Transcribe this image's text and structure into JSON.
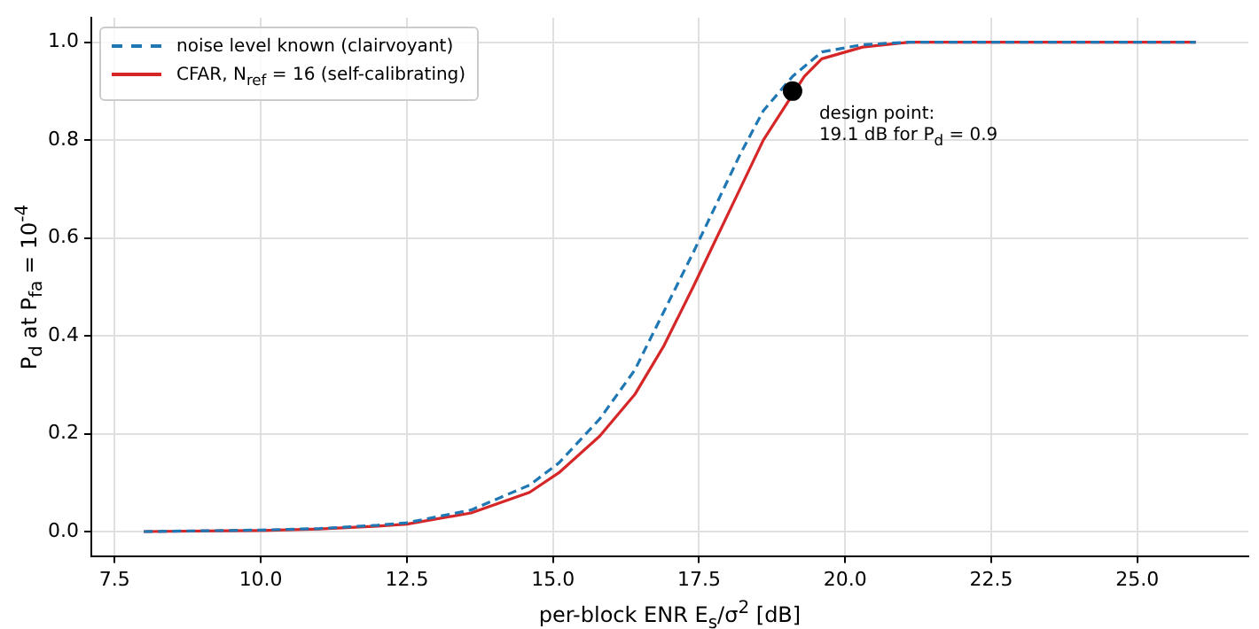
{
  "chart_data": {
    "type": "line",
    "xlabel": "per-block ENR E$_{s}$/σ$^{2}$ [dB]",
    "ylabel": "P$_{d}$ at P$_{fa}$ = 10$^{-4}$",
    "xlim": [
      7.1,
      26.9
    ],
    "ylim": [
      -0.05,
      1.05
    ],
    "xticks": [
      {
        "value": 7.5,
        "label": "7.5"
      },
      {
        "value": 10,
        "label": "10.0"
      },
      {
        "value": 12.5,
        "label": "12.5"
      },
      {
        "value": 15,
        "label": "15.0"
      },
      {
        "value": 17.5,
        "label": "17.5"
      },
      {
        "value": 20,
        "label": "20.0"
      },
      {
        "value": 22.5,
        "label": "22.5"
      },
      {
        "value": 25,
        "label": "25.0"
      }
    ],
    "yticks": [
      {
        "value": 0,
        "label": "0.0"
      },
      {
        "value": 0.2,
        "label": "0.2"
      },
      {
        "value": 0.4,
        "label": "0.4"
      },
      {
        "value": 0.6,
        "label": "0.6"
      },
      {
        "value": 0.8,
        "label": "0.8"
      },
      {
        "value": 1,
        "label": "1.0"
      }
    ],
    "grid": true,
    "legend": "top left",
    "marker": "none",
    "series": [
      {
        "name": "noise level known (clairvoyant)",
        "color": "#1f77b4",
        "line_style": "dashed",
        "x": [
          8,
          10,
          11,
          12,
          12.5,
          13.6,
          14.6,
          15.1,
          15.8,
          16.4,
          16.9,
          17.4,
          17.8,
          18.2,
          18.6,
          19.1,
          19.6,
          20.3,
          21.1,
          26
        ],
        "values": [
          0,
          0.003,
          0.006,
          0.013,
          0.018,
          0.044,
          0.095,
          0.14,
          0.23,
          0.33,
          0.45,
          0.57,
          0.67,
          0.77,
          0.86,
          0.93,
          0.98,
          0.995,
          1,
          1
        ]
      },
      {
        "name": "CFAR, N$_{ref}$ = 16 (self-calibrating)",
        "color": "#d62728",
        "line_style": "solid",
        "x": [
          8,
          10,
          11,
          12,
          12.5,
          13.6,
          14.6,
          15.1,
          15.8,
          16.4,
          16.9,
          17.4,
          17.8,
          18.2,
          18.6,
          19.3,
          19.6,
          20.3,
          21.1,
          26
        ],
        "values": [
          0,
          0.002,
          0.005,
          0.011,
          0.015,
          0.038,
          0.08,
          0.12,
          0.195,
          0.28,
          0.38,
          0.5,
          0.6,
          0.7,
          0.8,
          0.93,
          0.966,
          0.99,
          1,
          1
        ]
      },
      {
        "type": "scatter",
        "color": "#000000",
        "marker": "circle",
        "x": [
          19.1
        ],
        "values": [
          0.9
        ]
      }
    ],
    "annotations": [
      {
        "text": "design point:\n19.1 dB for P$_{d}$ = 0.9",
        "x": 19.1,
        "y": 0.9
      }
    ]
  }
}
